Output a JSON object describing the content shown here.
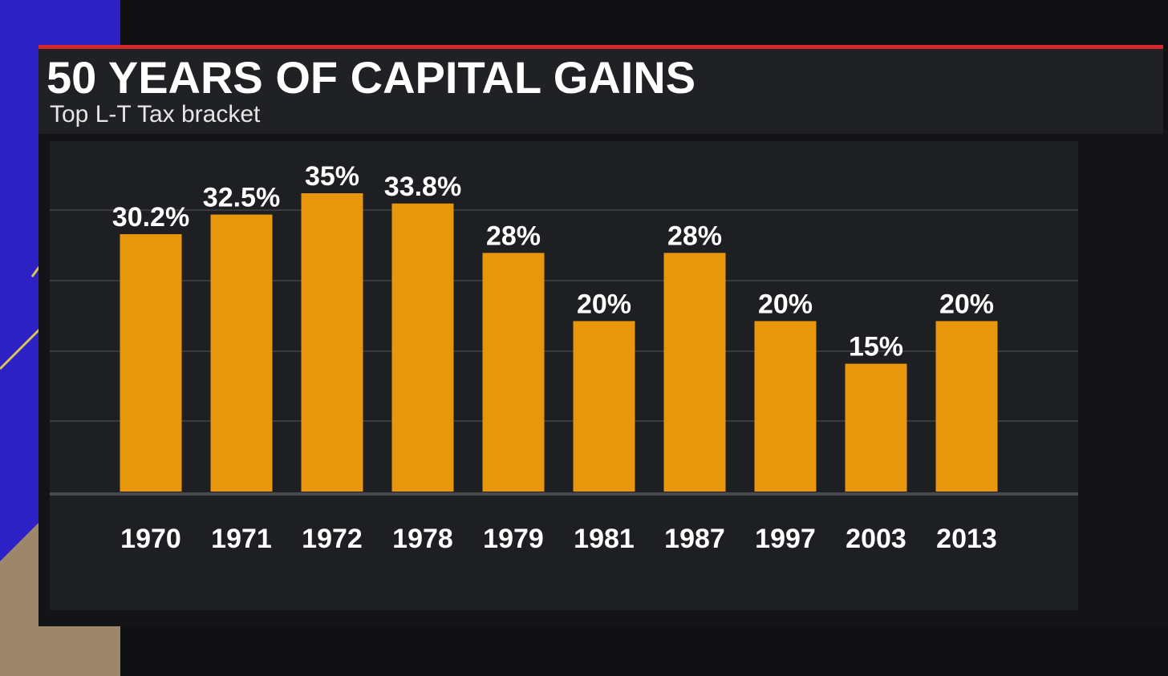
{
  "header": {
    "title": "50 YEARS OF CAPITAL GAINS",
    "subtitle": "Top L-T Tax bracket"
  },
  "colors": {
    "accent": "#d4272e",
    "bar": "#e8960c",
    "panel": "#1e1f22",
    "header_panel": "#202124",
    "text": "#ffffff",
    "gridline": "#3a3b40"
  },
  "chart_data": {
    "type": "bar",
    "title": "50 YEARS OF CAPITAL GAINS",
    "subtitle": "Top L-T Tax bracket",
    "categories": [
      "1970",
      "1971",
      "1972",
      "1978",
      "1979",
      "1981",
      "1987",
      "1997",
      "2003",
      "2013"
    ],
    "values": [
      30.2,
      32.5,
      35,
      33.8,
      28,
      20,
      28,
      20,
      15,
      20
    ],
    "data_labels": [
      "30.2%",
      "32.5%",
      "35%",
      "33.8%",
      "28%",
      "20%",
      "28%",
      "20%",
      "15%",
      "20%"
    ],
    "xlabel": "",
    "ylabel": "",
    "ylim": [
      0,
      35
    ],
    "grid": true,
    "legend": "none"
  }
}
